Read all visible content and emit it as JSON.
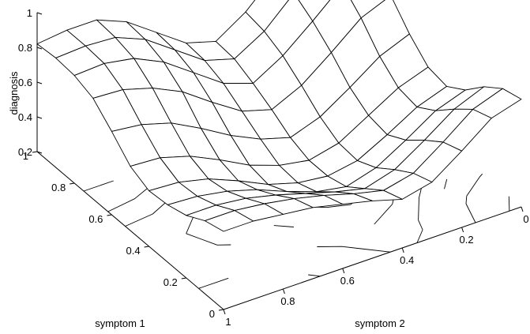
{
  "chart_data": {
    "type": "surface3d",
    "zlabel": "diagnosis",
    "xlabel": "symptom 1",
    "ylabel": "symptom 2",
    "x_range": [
      0,
      1
    ],
    "y_range": [
      0,
      1
    ],
    "zlim": [
      0.2,
      1.0
    ],
    "x_ticks": [
      "0",
      "0.2",
      "0.4",
      "0.6",
      "0.8",
      "1"
    ],
    "y_ticks": [
      "0",
      "0.2",
      "0.4",
      "0.6",
      "0.8",
      "1"
    ],
    "z_ticks": [
      "0.2",
      "0.4",
      "0.6",
      "0.8",
      "1"
    ],
    "grid": "11x11 mesh surface with contour projection on floor",
    "peaks": [
      {
        "symptom_1": 1.0,
        "symptom_2": 1.0,
        "diagnosis": 0.82
      },
      {
        "symptom_1": 1.0,
        "symptom_2": 0.0,
        "diagnosis": 1.0
      },
      {
        "symptom_1": 0.0,
        "symptom_2": 0.0,
        "diagnosis": 0.82
      },
      {
        "symptom_1": 0.0,
        "symptom_2": 1.0,
        "diagnosis": 0.65
      }
    ],
    "minimum": {
      "symptom_1": 0.5,
      "symptom_2": 0.5,
      "diagnosis": 0.25
    },
    "surface": [
      [
        0.82,
        0.77,
        0.64,
        0.52,
        0.48,
        0.53,
        0.57,
        0.61,
        0.63,
        0.65,
        0.65
      ],
      [
        0.79,
        0.73,
        0.6,
        0.48,
        0.44,
        0.48,
        0.53,
        0.57,
        0.6,
        0.62,
        0.62
      ],
      [
        0.71,
        0.64,
        0.52,
        0.41,
        0.36,
        0.4,
        0.45,
        0.5,
        0.54,
        0.56,
        0.56
      ],
      [
        0.6,
        0.54,
        0.43,
        0.33,
        0.28,
        0.31,
        0.37,
        0.44,
        0.49,
        0.52,
        0.53
      ],
      [
        0.53,
        0.47,
        0.37,
        0.28,
        0.25,
        0.27,
        0.32,
        0.4,
        0.47,
        0.51,
        0.52
      ],
      [
        0.55,
        0.49,
        0.39,
        0.29,
        0.25,
        0.28,
        0.34,
        0.43,
        0.51,
        0.56,
        0.57
      ],
      [
        0.65,
        0.58,
        0.46,
        0.35,
        0.29,
        0.34,
        0.42,
        0.52,
        0.61,
        0.66,
        0.68
      ],
      [
        0.78,
        0.71,
        0.57,
        0.44,
        0.36,
        0.41,
        0.52,
        0.64,
        0.72,
        0.77,
        0.78
      ],
      [
        0.89,
        0.81,
        0.66,
        0.52,
        0.42,
        0.48,
        0.6,
        0.72,
        0.8,
        0.83,
        0.82
      ],
      [
        0.97,
        0.89,
        0.73,
        0.57,
        0.47,
        0.52,
        0.64,
        0.76,
        0.83,
        0.84,
        0.83
      ],
      [
        1.0,
        0.91,
        0.75,
        0.59,
        0.48,
        0.53,
        0.65,
        0.77,
        0.84,
        0.84,
        0.82
      ]
    ]
  }
}
